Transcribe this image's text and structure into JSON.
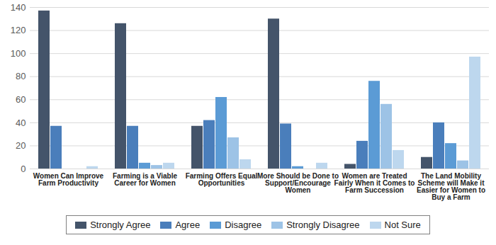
{
  "chart_data": {
    "type": "bar",
    "categories": [
      "Women Can Improve Farm Productivity",
      "Farming is a Viable Career for Women",
      "Farming Offers Equal Opportunities",
      "More Should be Done to Support/Encourage Women",
      "Women are Treated Fairly When it Comes to Farm Succession",
      "The Land Mobility Scheme will Make it Easier for Women to Buy a Farm"
    ],
    "series": [
      {
        "name": "Strongly Agree",
        "color": "#44546A",
        "values": [
          137,
          126,
          37,
          130,
          4,
          10
        ]
      },
      {
        "name": "Agree",
        "color": "#4A7EBB",
        "values": [
          37,
          37,
          42,
          39,
          24,
          40
        ]
      },
      {
        "name": "Disagree",
        "color": "#5B9BD5",
        "values": [
          0,
          5,
          62,
          2,
          76,
          22
        ]
      },
      {
        "name": "Strongly Disagree",
        "color": "#9DC3E6",
        "values": [
          0,
          3,
          27,
          0,
          56,
          7
        ]
      },
      {
        "name": "Not Sure",
        "color": "#BDD7EE",
        "values": [
          2,
          5,
          8,
          5,
          16,
          97
        ]
      }
    ],
    "ylim": [
      0,
      140
    ],
    "yticks": [
      0,
      20,
      40,
      60,
      80,
      100,
      120,
      140
    ],
    "grid": true,
    "legend": "bottom"
  }
}
